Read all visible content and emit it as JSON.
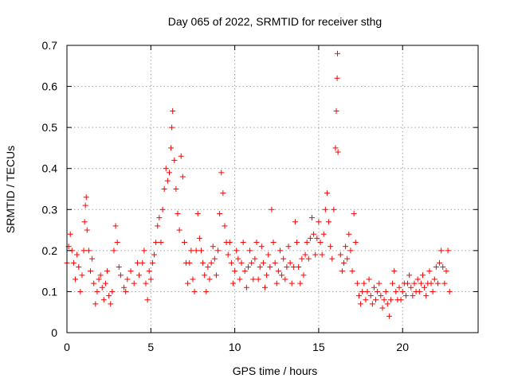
{
  "chart_data": {
    "type": "scatter",
    "title": "Day 065 of 2022, SRMTID for receiver sthg",
    "xlabel": "GPS time / hours",
    "ylabel": "SRMTID / TECUs",
    "xlim": [
      0,
      24.5
    ],
    "ylim": [
      0,
      0.7
    ],
    "xticks": [
      0,
      5,
      10,
      15,
      20
    ],
    "xtick_labels": [
      "0",
      "5",
      "10",
      "15",
      "20"
    ],
    "yticks": [
      0,
      0.1,
      0.2,
      0.3,
      0.4,
      0.5,
      0.6,
      0.7
    ],
    "ytick_labels": [
      "0",
      "0.1",
      "0.2",
      "0.3",
      "0.4",
      "0.5",
      "0.6",
      "0.7"
    ],
    "grid": true,
    "marker": "+",
    "series": [
      {
        "name": "SRMTID",
        "color": "#ff0000",
        "points": [
          [
            0.0,
            0.17
          ],
          [
            0.1,
            0.21
          ],
          [
            0.2,
            0.24
          ],
          [
            0.3,
            0.2
          ],
          [
            0.4,
            0.17
          ],
          [
            0.5,
            0.13
          ],
          [
            0.6,
            0.19
          ],
          [
            0.7,
            0.16
          ],
          [
            0.8,
            0.1
          ],
          [
            0.9,
            0.14
          ],
          [
            1.0,
            0.2
          ],
          [
            1.05,
            0.27
          ],
          [
            1.1,
            0.31
          ],
          [
            1.15,
            0.33
          ],
          [
            1.2,
            0.25
          ],
          [
            1.3,
            0.2
          ],
          [
            1.4,
            0.15
          ],
          [
            1.5,
            0.18
          ],
          [
            1.6,
            0.12
          ],
          [
            1.7,
            0.07
          ],
          [
            1.8,
            0.1
          ],
          [
            1.9,
            0.13
          ],
          [
            2.0,
            0.14
          ],
          [
            2.1,
            0.11
          ],
          [
            2.2,
            0.08
          ],
          [
            2.3,
            0.12
          ],
          [
            2.4,
            0.15
          ],
          [
            2.5,
            0.09
          ],
          [
            2.6,
            0.07
          ],
          [
            2.7,
            0.1
          ],
          [
            2.8,
            0.2
          ],
          [
            2.9,
            0.26
          ],
          [
            3.0,
            0.22
          ],
          [
            3.1,
            0.16
          ],
          [
            3.2,
            0.14
          ],
          [
            3.4,
            0.11
          ],
          [
            3.5,
            0.1
          ],
          [
            3.6,
            0.13
          ],
          [
            3.8,
            0.15
          ],
          [
            4.0,
            0.12
          ],
          [
            4.2,
            0.17
          ],
          [
            4.3,
            0.14
          ],
          [
            4.5,
            0.17
          ],
          [
            4.6,
            0.2
          ],
          [
            4.7,
            0.12
          ],
          [
            4.8,
            0.08
          ],
          [
            4.9,
            0.15
          ],
          [
            5.0,
            0.13
          ],
          [
            5.1,
            0.17
          ],
          [
            5.2,
            0.19
          ],
          [
            5.3,
            0.22
          ],
          [
            5.4,
            0.26
          ],
          [
            5.5,
            0.28
          ],
          [
            5.6,
            0.22
          ],
          [
            5.7,
            0.3
          ],
          [
            5.8,
            0.35
          ],
          [
            5.9,
            0.4
          ],
          [
            6.0,
            0.37
          ],
          [
            6.1,
            0.39
          ],
          [
            6.2,
            0.45
          ],
          [
            6.25,
            0.5
          ],
          [
            6.3,
            0.54
          ],
          [
            6.4,
            0.42
          ],
          [
            6.5,
            0.35
          ],
          [
            6.6,
            0.29
          ],
          [
            6.7,
            0.25
          ],
          [
            6.8,
            0.43
          ],
          [
            6.9,
            0.38
          ],
          [
            7.0,
            0.22
          ],
          [
            7.1,
            0.17
          ],
          [
            7.2,
            0.12
          ],
          [
            7.3,
            0.17
          ],
          [
            7.4,
            0.2
          ],
          [
            7.5,
            0.13
          ],
          [
            7.6,
            0.1
          ],
          [
            7.7,
            0.2
          ],
          [
            7.8,
            0.29
          ],
          [
            7.9,
            0.23
          ],
          [
            8.0,
            0.2
          ],
          [
            8.1,
            0.17
          ],
          [
            8.2,
            0.14
          ],
          [
            8.3,
            0.1
          ],
          [
            8.4,
            0.16
          ],
          [
            8.5,
            0.13
          ],
          [
            8.6,
            0.17
          ],
          [
            8.7,
            0.21
          ],
          [
            8.8,
            0.18
          ],
          [
            8.9,
            0.14
          ],
          [
            9.0,
            0.2
          ],
          [
            9.1,
            0.29
          ],
          [
            9.2,
            0.39
          ],
          [
            9.3,
            0.34
          ],
          [
            9.4,
            0.26
          ],
          [
            9.5,
            0.22
          ],
          [
            9.6,
            0.19
          ],
          [
            9.7,
            0.22
          ],
          [
            9.8,
            0.17
          ],
          [
            9.9,
            0.12
          ],
          [
            10.0,
            0.15
          ],
          [
            10.1,
            0.2
          ],
          [
            10.2,
            0.18
          ],
          [
            10.3,
            0.13
          ],
          [
            10.4,
            0.17
          ],
          [
            10.5,
            0.22
          ],
          [
            10.6,
            0.15
          ],
          [
            10.7,
            0.11
          ],
          [
            10.8,
            0.16
          ],
          [
            10.9,
            0.2
          ],
          [
            11.0,
            0.17
          ],
          [
            11.1,
            0.13
          ],
          [
            11.2,
            0.18
          ],
          [
            11.3,
            0.22
          ],
          [
            11.4,
            0.13
          ],
          [
            11.5,
            0.16
          ],
          [
            11.6,
            0.21
          ],
          [
            11.7,
            0.17
          ],
          [
            11.8,
            0.11
          ],
          [
            11.9,
            0.14
          ],
          [
            12.0,
            0.19
          ],
          [
            12.1,
            0.16
          ],
          [
            12.2,
            0.3
          ],
          [
            12.3,
            0.22
          ],
          [
            12.4,
            0.17
          ],
          [
            12.5,
            0.12
          ],
          [
            12.6,
            0.15
          ],
          [
            12.7,
            0.2
          ],
          [
            12.8,
            0.14
          ],
          [
            12.9,
            0.18
          ],
          [
            13.0,
            0.13
          ],
          [
            13.1,
            0.16
          ],
          [
            13.2,
            0.21
          ],
          [
            13.3,
            0.17
          ],
          [
            13.4,
            0.12
          ],
          [
            13.5,
            0.16
          ],
          [
            13.6,
            0.27
          ],
          [
            13.7,
            0.22
          ],
          [
            13.8,
            0.16
          ],
          [
            13.9,
            0.12
          ],
          [
            14.0,
            0.18
          ],
          [
            14.1,
            0.14
          ],
          [
            14.2,
            0.19
          ],
          [
            14.3,
            0.22
          ],
          [
            14.4,
            0.18
          ],
          [
            14.5,
            0.23
          ],
          [
            14.6,
            0.28
          ],
          [
            14.7,
            0.24
          ],
          [
            14.8,
            0.19
          ],
          [
            14.9,
            0.23
          ],
          [
            15.0,
            0.27
          ],
          [
            15.1,
            0.22
          ],
          [
            15.2,
            0.19
          ],
          [
            15.3,
            0.24
          ],
          [
            15.4,
            0.3
          ],
          [
            15.5,
            0.34
          ],
          [
            15.6,
            0.27
          ],
          [
            15.7,
            0.21
          ],
          [
            15.8,
            0.18
          ],
          [
            15.9,
            0.3
          ],
          [
            16.0,
            0.45
          ],
          [
            16.05,
            0.54
          ],
          [
            16.1,
            0.62
          ],
          [
            16.12,
            0.68
          ],
          [
            16.15,
            0.44
          ],
          [
            16.3,
            0.19
          ],
          [
            16.4,
            0.15
          ],
          [
            16.5,
            0.17
          ],
          [
            16.6,
            0.21
          ],
          [
            16.7,
            0.18
          ],
          [
            16.8,
            0.24
          ],
          [
            16.9,
            0.2
          ],
          [
            17.0,
            0.15
          ],
          [
            17.1,
            0.29
          ],
          [
            17.2,
            0.22
          ],
          [
            17.3,
            0.12
          ],
          [
            17.4,
            0.09
          ],
          [
            17.5,
            0.07
          ],
          [
            17.6,
            0.1
          ],
          [
            17.7,
            0.12
          ],
          [
            17.8,
            0.08
          ],
          [
            17.9,
            0.1
          ],
          [
            18.0,
            0.13
          ],
          [
            18.1,
            0.09
          ],
          [
            18.2,
            0.07
          ],
          [
            18.3,
            0.11
          ],
          [
            18.4,
            0.08
          ],
          [
            18.5,
            0.1
          ],
          [
            18.6,
            0.12
          ],
          [
            18.7,
            0.09
          ],
          [
            18.8,
            0.06
          ],
          [
            18.9,
            0.08
          ],
          [
            19.0,
            0.1
          ],
          [
            19.1,
            0.07
          ],
          [
            19.2,
            0.04
          ],
          [
            19.3,
            0.08
          ],
          [
            19.4,
            0.12
          ],
          [
            19.5,
            0.15
          ],
          [
            19.6,
            0.1
          ],
          [
            19.7,
            0.08
          ],
          [
            19.8,
            0.11
          ],
          [
            19.9,
            0.08
          ],
          [
            20.0,
            0.1
          ],
          [
            20.1,
            0.12
          ],
          [
            20.2,
            0.09
          ],
          [
            20.3,
            0.12
          ],
          [
            20.4,
            0.14
          ],
          [
            20.5,
            0.11
          ],
          [
            20.6,
            0.09
          ],
          [
            20.7,
            0.12
          ],
          [
            20.8,
            0.1
          ],
          [
            20.9,
            0.13
          ],
          [
            21.0,
            0.1
          ],
          [
            21.1,
            0.12
          ],
          [
            21.2,
            0.14
          ],
          [
            21.3,
            0.11
          ],
          [
            21.4,
            0.09
          ],
          [
            21.5,
            0.12
          ],
          [
            21.6,
            0.15
          ],
          [
            21.7,
            0.12
          ],
          [
            21.8,
            0.1
          ],
          [
            21.9,
            0.13
          ],
          [
            22.0,
            0.16
          ],
          [
            22.1,
            0.12
          ],
          [
            22.2,
            0.17
          ],
          [
            22.3,
            0.2
          ],
          [
            22.4,
            0.16
          ],
          [
            22.5,
            0.12
          ],
          [
            22.6,
            0.15
          ],
          [
            22.7,
            0.2
          ],
          [
            22.8,
            0.1
          ]
        ]
      }
    ]
  }
}
